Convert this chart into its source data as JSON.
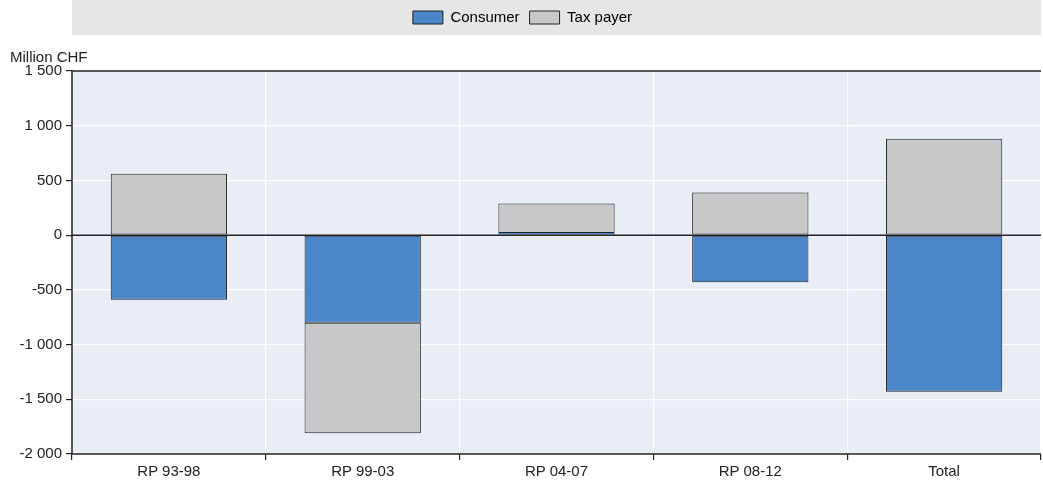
{
  "chart_data": {
    "type": "bar",
    "stacked": true,
    "ylabel": "Million CHF",
    "legend": "top",
    "grid": true,
    "categories": [
      "RP 93-98",
      "RP 99-03",
      "RP 04-07",
      "RP 08-12",
      "Total"
    ],
    "series": [
      {
        "name": "Consumer",
        "color": "#4a86c8",
        "values": [
          -590,
          -800,
          20,
          -430,
          -1430
        ]
      },
      {
        "name": "Tax payer",
        "color": "#c8c8ca",
        "values": [
          560,
          -1010,
          270,
          390,
          880
        ]
      }
    ],
    "ylim": [
      -2000,
      1500
    ],
    "yticks": [
      {
        "value": -2000,
        "label": "-2 000"
      },
      {
        "value": -1500,
        "label": "-1 500"
      },
      {
        "value": -1000,
        "label": "-1 000"
      },
      {
        "value": -500,
        "label": "-500"
      },
      0,
      500,
      {
        "value": 1000,
        "label": "1 000"
      },
      {
        "value": 1500,
        "label": "1 500"
      }
    ]
  }
}
